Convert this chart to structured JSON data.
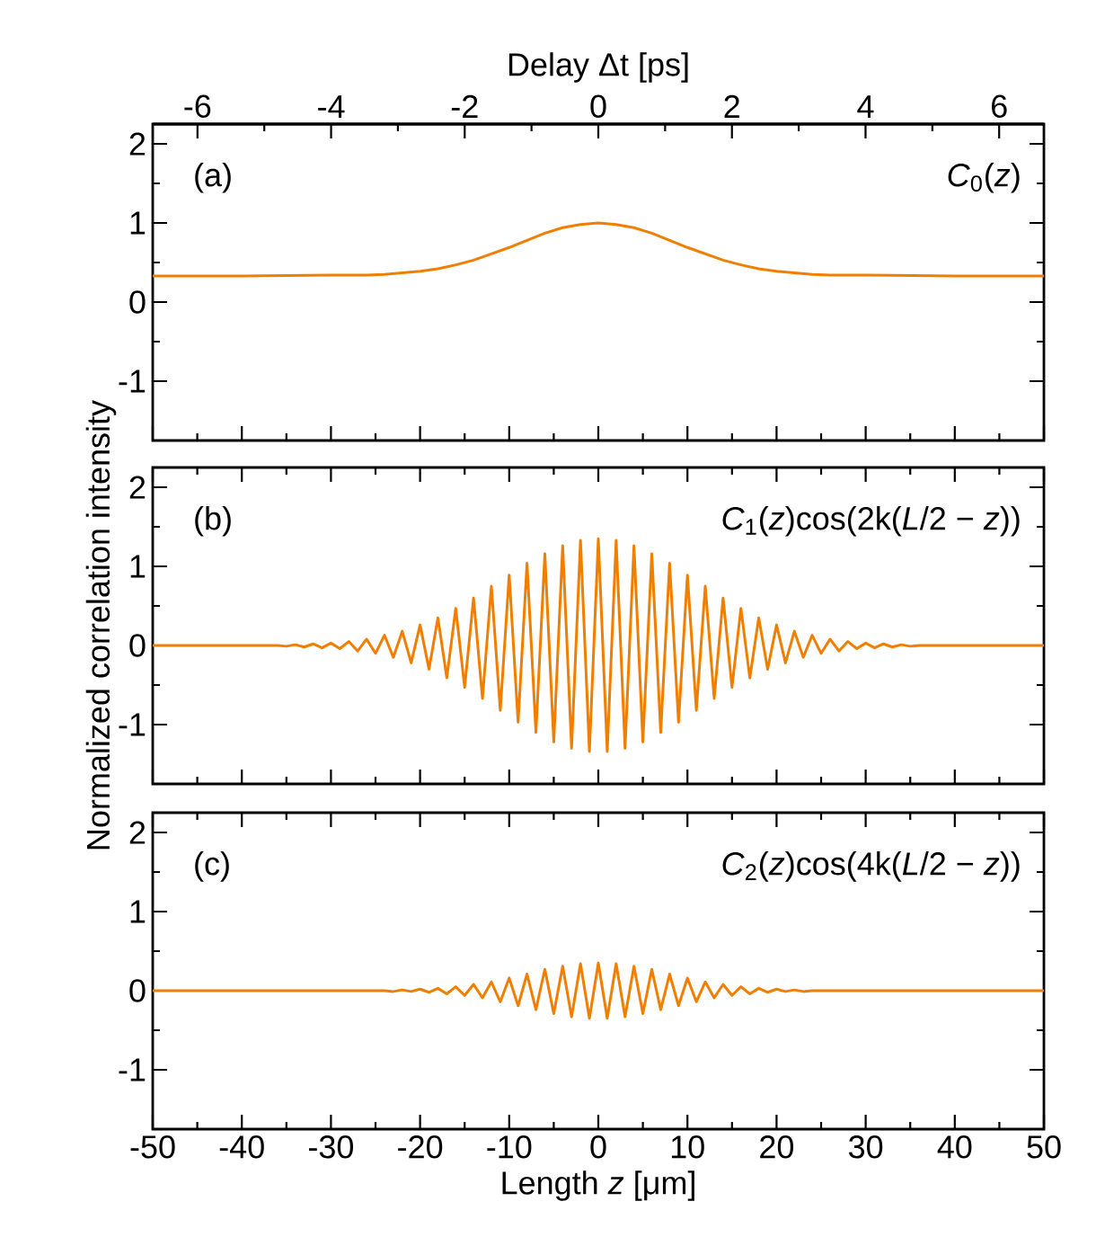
{
  "chart_data": [
    {
      "type": "line",
      "x2label": "Delay Δt [ps]",
      "x2lim": [
        -6.67,
        6.67
      ],
      "x2ticks": [
        -6,
        -4,
        -2,
        0,
        2,
        4,
        6
      ],
      "xlim": [
        -50,
        50
      ],
      "xticks": [
        -50,
        -40,
        -30,
        -20,
        -10,
        0,
        10,
        20,
        30,
        40,
        50
      ],
      "ylim": [
        -1.75,
        2.25
      ],
      "yticks": [
        -1,
        0,
        1,
        2
      ],
      "tick_labels": "y",
      "annotations": [
        "(a)"
      ],
      "series": [
        {
          "name": "*C*$_{0}$(*z*)",
          "color": "#f07f00",
          "x": [
            -50,
            -40,
            -30,
            -28,
            -26,
            -24,
            -22,
            -20,
            -18,
            -16,
            -14,
            -12,
            -10,
            -8,
            -6,
            -4,
            -2,
            0,
            2,
            4,
            6,
            8,
            10,
            12,
            14,
            16,
            18,
            20,
            22,
            24,
            26,
            28,
            30,
            40,
            50
          ],
          "values": [
            0.33,
            0.33,
            0.34,
            0.34,
            0.34,
            0.35,
            0.37,
            0.39,
            0.42,
            0.47,
            0.53,
            0.61,
            0.69,
            0.78,
            0.87,
            0.94,
            0.98,
            1.0,
            0.98,
            0.94,
            0.87,
            0.78,
            0.69,
            0.61,
            0.53,
            0.47,
            0.42,
            0.39,
            0.37,
            0.35,
            0.34,
            0.34,
            0.34,
            0.33,
            0.33
          ]
        }
      ]
    },
    {
      "type": "line",
      "ylabel": "Normalized correlation intensity",
      "xlim": [
        -50,
        50
      ],
      "xticks": [
        -50,
        -40,
        -30,
        -20,
        -10,
        0,
        10,
        20,
        30,
        40,
        50
      ],
      "ylim": [
        -1.75,
        2.25
      ],
      "yticks": [
        -1,
        0,
        1,
        2
      ],
      "tick_labels": "y",
      "annotations": [
        "(b)"
      ],
      "series": [
        {
          "name": "*C*$_{1}$(*z*)cos(2k(*L*/2 − *z*))",
          "color": "#f07f00",
          "x": [
            -50,
            -36,
            -35,
            -34,
            -33,
            -32,
            -31,
            -30,
            -29,
            -28,
            -27,
            -26,
            -25,
            -24,
            -23,
            -22,
            -21,
            -20,
            -19,
            -18,
            -17,
            -16,
            -15,
            -14,
            -13,
            -12,
            -11,
            -10,
            -9,
            -8,
            -7,
            -6,
            -5,
            -4,
            -3,
            -2,
            -1,
            0,
            1,
            2,
            3,
            4,
            5,
            6,
            7,
            8,
            9,
            10,
            11,
            12,
            13,
            14,
            15,
            16,
            17,
            18,
            19,
            20,
            21,
            22,
            23,
            24,
            25,
            26,
            27,
            28,
            29,
            30,
            31,
            32,
            33,
            34,
            35,
            36,
            50
          ],
          "values": [
            0,
            0,
            -0.01,
            0.01,
            -0.02,
            0.02,
            -0.03,
            0.03,
            -0.04,
            0.05,
            -0.07,
            0.08,
            -0.1,
            0.13,
            -0.15,
            0.18,
            -0.22,
            0.26,
            -0.3,
            0.35,
            -0.41,
            0.47,
            -0.53,
            0.6,
            -0.67,
            0.75,
            -0.82,
            0.89,
            -0.97,
            1.04,
            -1.1,
            1.16,
            -1.22,
            1.26,
            -1.3,
            1.33,
            -1.34,
            1.35,
            -1.34,
            1.33,
            -1.3,
            1.26,
            -1.22,
            1.16,
            -1.1,
            1.04,
            -0.97,
            0.89,
            -0.82,
            0.75,
            -0.67,
            0.6,
            -0.53,
            0.47,
            -0.41,
            0.35,
            -0.3,
            0.26,
            -0.22,
            0.18,
            -0.15,
            0.13,
            -0.1,
            0.08,
            -0.07,
            0.05,
            -0.04,
            0.03,
            -0.03,
            0.02,
            -0.02,
            0.01,
            -0.01,
            0,
            0
          ]
        }
      ]
    },
    {
      "type": "line",
      "xlabel": "Length *z* [μm]",
      "xlim": [
        -50,
        50
      ],
      "xticks": [
        -50,
        -40,
        -30,
        -20,
        -10,
        0,
        10,
        20,
        30,
        40,
        50
      ],
      "ylim": [
        -1.75,
        2.25
      ],
      "yticks": [
        -1,
        0,
        1,
        2
      ],
      "annotations": [
        "(c)"
      ],
      "series": [
        {
          "name": "*C*$_{2}$(*z*)cos(4k(*L*/2 − *z*))",
          "color": "#f07f00",
          "x": [
            -50,
            -24,
            -23,
            -22,
            -21,
            -20,
            -19,
            -18,
            -17,
            -16,
            -15,
            -14,
            -13,
            -12,
            -11,
            -10,
            -9,
            -8,
            -7,
            -6,
            -5,
            -4,
            -3,
            -2,
            -1,
            0,
            1,
            2,
            3,
            4,
            5,
            6,
            7,
            8,
            9,
            10,
            11,
            12,
            13,
            14,
            15,
            16,
            17,
            18,
            19,
            20,
            21,
            22,
            23,
            24,
            50
          ],
          "values": [
            0,
            0,
            -0.01,
            0.01,
            -0.01,
            0.02,
            -0.02,
            0.03,
            -0.04,
            0.05,
            -0.06,
            0.08,
            -0.09,
            0.11,
            -0.14,
            0.16,
            -0.19,
            0.21,
            -0.24,
            0.27,
            -0.29,
            0.31,
            -0.33,
            0.34,
            -0.35,
            0.35,
            -0.35,
            0.34,
            -0.33,
            0.31,
            -0.29,
            0.27,
            -0.24,
            0.21,
            -0.19,
            0.16,
            -0.14,
            0.11,
            -0.09,
            0.08,
            -0.06,
            0.05,
            -0.04,
            0.03,
            -0.02,
            0.02,
            -0.01,
            0.01,
            -0.01,
            0,
            0
          ]
        }
      ]
    }
  ]
}
